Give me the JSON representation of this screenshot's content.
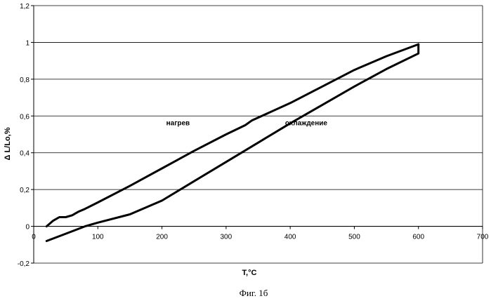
{
  "chart_data": {
    "type": "line",
    "xlabel": "T,°C",
    "ylabel": "Δ L/Lo,%",
    "caption": "Фиг. 1б",
    "xlim": [
      0,
      700
    ],
    "ylim": [
      -0.2,
      1.2
    ],
    "x_ticks": [
      "0",
      "100",
      "200",
      "300",
      "400",
      "500",
      "600",
      "700"
    ],
    "y_ticks": [
      "-0,2",
      "0",
      "0,2",
      "0,4",
      "0,6",
      "0,8",
      "1",
      "1,2"
    ],
    "grid": "horizontal",
    "line_color": "#000000",
    "annotations": [
      {
        "text": "нагрев",
        "x": 225,
        "y": 0.55
      },
      {
        "text": "охлаждение",
        "x": 425,
        "y": 0.55
      }
    ],
    "series": [
      {
        "name": "нагрев",
        "x": [
          20,
          30,
          40,
          50,
          60,
          70,
          80,
          100,
          150,
          200,
          250,
          300,
          330,
          340,
          400,
          450,
          500,
          550,
          600
        ],
        "y": [
          0.0,
          0.03,
          0.05,
          0.05,
          0.06,
          0.08,
          0.095,
          0.13,
          0.22,
          0.315,
          0.41,
          0.5,
          0.55,
          0.575,
          0.67,
          0.76,
          0.85,
          0.925,
          0.99
        ]
      },
      {
        "name": "охлаждение",
        "x": [
          600,
          600,
          550,
          500,
          450,
          400,
          350,
          300,
          250,
          200,
          150,
          100,
          80,
          50,
          20
        ],
        "y": [
          0.99,
          0.94,
          0.855,
          0.76,
          0.66,
          0.56,
          0.455,
          0.35,
          0.245,
          0.14,
          0.065,
          0.02,
          0.0,
          -0.04,
          -0.08
        ]
      }
    ]
  }
}
